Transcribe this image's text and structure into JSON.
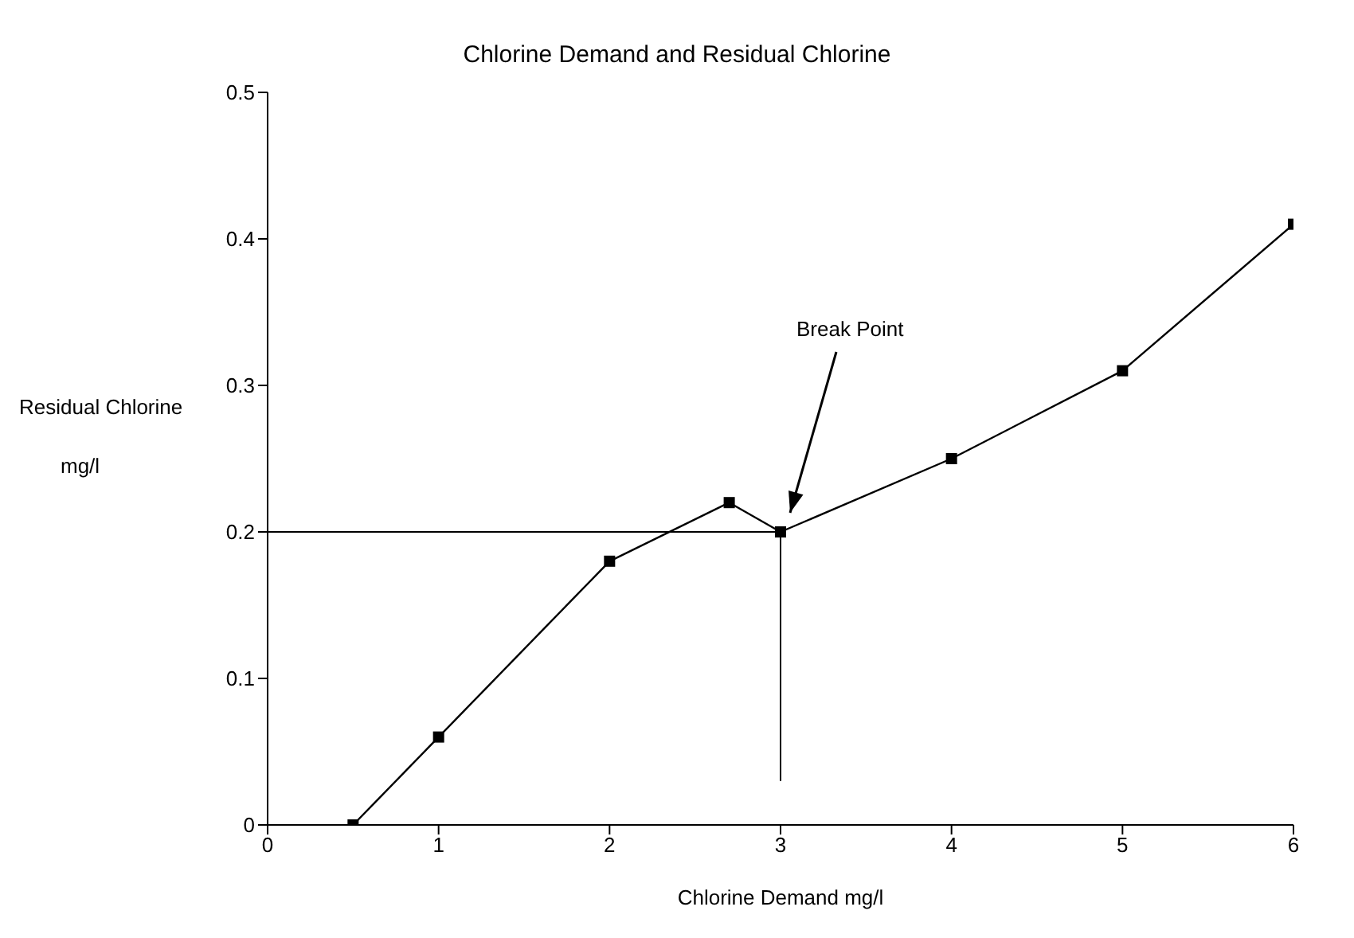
{
  "chart_data": {
    "type": "line",
    "title": "Chlorine Demand and Residual Chlorine",
    "xlabel": "Chlorine Demand  mg/l",
    "ylabel": "Residual Chlorine\nmg/l",
    "x": [
      0.5,
      1,
      2,
      2.7,
      3,
      4,
      5,
      6
    ],
    "series": [
      {
        "color": "#000000",
        "values": [
          0,
          0.06,
          0.18,
          0.22,
          0.2,
          0.25,
          0.31,
          0.41
        ]
      }
    ],
    "xlim": [
      0,
      6
    ],
    "xticks": [
      0,
      1,
      2,
      3,
      4,
      5,
      6
    ],
    "ylim": [
      0,
      0.5
    ],
    "yticks": [
      0,
      0.1,
      0.2,
      0.3,
      0.4,
      0.5
    ],
    "ref_lines": [
      {
        "axis": "y",
        "value": 0.2
      },
      {
        "axis": "x",
        "value": 3
      }
    ],
    "annotations": [
      "Break Point"
    ],
    "marker": "square",
    "line_style": "solid",
    "grid": false,
    "legend": false
  }
}
